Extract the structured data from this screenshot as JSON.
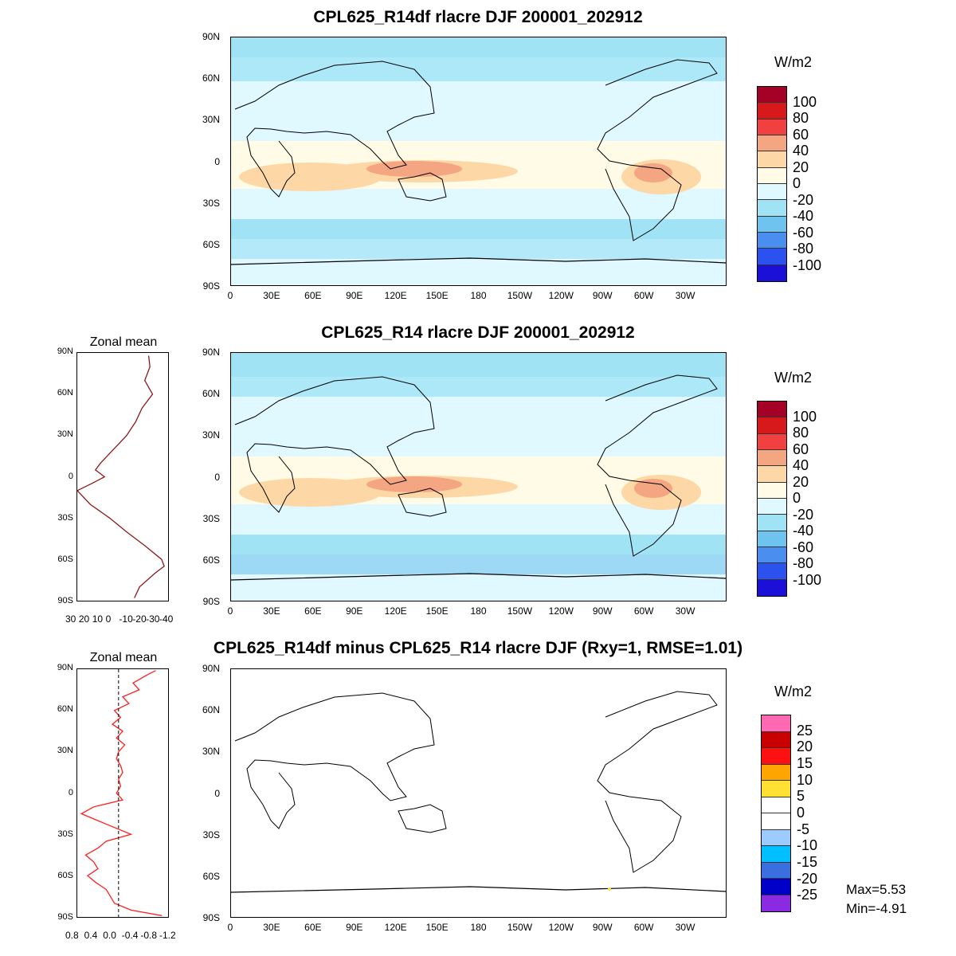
{
  "panels": {
    "top": {
      "title": "CPL625_R14df rlacre DJF 200001_202912",
      "unit": "W/m2"
    },
    "mid": {
      "title": "CPL625_R14 rlacre DJF 200001_202912",
      "unit": "W/m2",
      "zonal_label": "Zonal mean",
      "zonal_xticks": [
        "30",
        "20",
        "10",
        "0",
        "-10",
        "-20",
        "-30",
        "-40"
      ]
    },
    "diff": {
      "title": "CPL625_R14df minus CPL625_R14 rlacre DJF (Rxy=1, RMSE=1.01)",
      "unit": "W/m2",
      "zonal_label": "Zonal mean",
      "zonal_xticks": [
        "0.8",
        "0.4",
        "0.0",
        "-0.4",
        "-0.8",
        "-1.2"
      ],
      "max_text": "Max=5.53",
      "min_text": "Min=-4.91"
    }
  },
  "lat_labels": [
    "90N",
    "60N",
    "30N",
    "0",
    "30S",
    "60S",
    "90S"
  ],
  "lon_labels": [
    "0",
    "30E",
    "60E",
    "90E",
    "120E",
    "150E",
    "180",
    "150W",
    "120W",
    "90W",
    "60W",
    "30W"
  ],
  "legend_main": {
    "labels": [
      "100",
      "80",
      "60",
      "40",
      "20",
      "0",
      "-20",
      "-40",
      "-60",
      "-80",
      "-100"
    ],
    "colors": [
      "#a50026",
      "#d7191c",
      "#f04040",
      "#f4a582",
      "#fdd8a6",
      "#fffbe6",
      "#e0f8ff",
      "#9fe3f5",
      "#6fc4ef",
      "#4a8fef",
      "#2b52ef",
      "#1a10d8"
    ]
  },
  "legend_diff": {
    "labels": [
      "25",
      "20",
      "15",
      "10",
      "5",
      "0",
      "-5",
      "-10",
      "-15",
      "-20",
      "-25"
    ],
    "colors": [
      "#ff69b4",
      "#c80000",
      "#ff1010",
      "#ffa500",
      "#ffe033",
      "#ffffff",
      "#ffffff",
      "#9ecbff",
      "#00bfff",
      "#3a6fe0",
      "#0000c8",
      "#8a2be2"
    ]
  },
  "chart_data": [
    {
      "type": "line",
      "title": "Zonal mean",
      "ylabel": "",
      "yticks": [
        "90N",
        "60N",
        "30N",
        "0",
        "30S",
        "60S",
        "90S"
      ],
      "xlim": [
        30,
        -40
      ],
      "series": [
        {
          "values_lat": [
            88,
            80,
            70,
            60,
            50,
            40,
            30,
            20,
            10,
            5,
            0,
            -5,
            -10,
            -20,
            -30,
            -40,
            -50,
            -60,
            -65,
            -70,
            -80,
            -88
          ],
          "values": [
            -25,
            -26,
            -22,
            -28,
            -20,
            -15,
            -8,
            2,
            12,
            16,
            9,
            19,
            30,
            20,
            5,
            -8,
            -22,
            -35,
            -37,
            -30,
            -18,
            -14
          ]
        }
      ]
    },
    {
      "type": "line",
      "title": "Zonal mean",
      "ylabel": "",
      "yticks": [
        "90N",
        "60N",
        "30N",
        "0",
        "30S",
        "60S",
        "90S"
      ],
      "xlim": [
        1.0,
        -1.2
      ],
      "series": [
        {
          "values_lat": [
            89,
            86,
            80,
            75,
            70,
            65,
            60,
            55,
            50,
            45,
            40,
            35,
            30,
            25,
            20,
            15,
            10,
            5,
            0,
            -5,
            -10,
            -15,
            -20,
            -25,
            -30,
            -35,
            -40,
            -45,
            -50,
            -55,
            -60,
            -65,
            -70,
            -75,
            -80,
            -85,
            -89
          ],
          "values": [
            -0.9,
            -0.7,
            -0.35,
            -0.5,
            -0.1,
            -0.25,
            0.1,
            -0.05,
            0.15,
            -0.1,
            0.05,
            -0.15,
            0.0,
            0.05,
            -0.05,
            -0.1,
            0.0,
            -0.05,
            0.05,
            -0.1,
            0.6,
            0.9,
            0.5,
            0.1,
            -0.3,
            0.3,
            0.5,
            0.8,
            0.6,
            0.5,
            0.75,
            0.55,
            0.3,
            0.2,
            0.1,
            -0.3,
            -1.05
          ]
        }
      ]
    }
  ]
}
